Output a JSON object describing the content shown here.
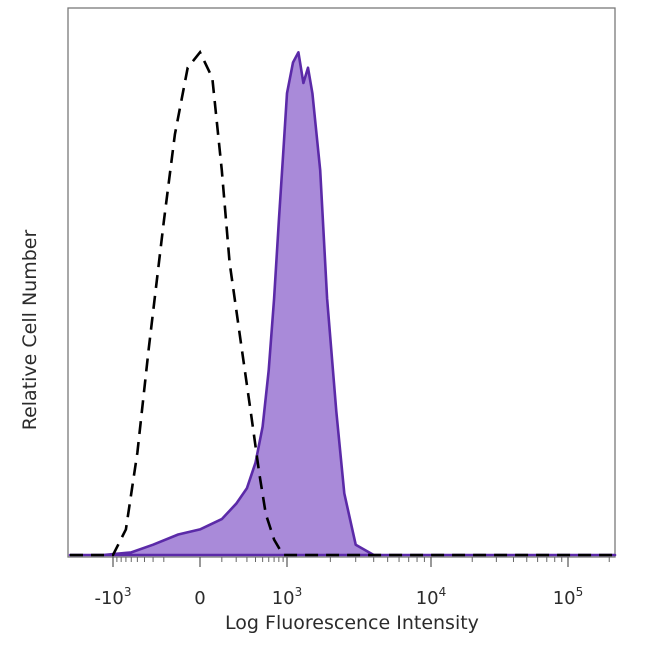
{
  "chart_data": {
    "type": "area",
    "xlabel": "Log Fluorescence Intensity",
    "ylabel": "Relative Cell Number",
    "x_scale": "biexponential",
    "xlim": [
      -1500,
      300000
    ],
    "ylim": [
      0,
      1
    ],
    "grid": false,
    "x_ticks": [
      {
        "value": -1000,
        "base": "-10",
        "exp": "3"
      },
      {
        "value": 0,
        "base": "0",
        "exp": ""
      },
      {
        "value": 1000,
        "base": "10",
        "exp": "3"
      },
      {
        "value": 10000,
        "base": "10",
        "exp": "4"
      },
      {
        "value": 100000,
        "base": "10",
        "exp": "5"
      }
    ],
    "series": [
      {
        "style": "dashed-outline",
        "color": "#000000",
        "x": [
          -3000,
          -1000,
          -700,
          -500,
          -350,
          -200,
          -120,
          -50,
          0,
          50,
          100,
          150,
          250,
          350,
          450,
          550,
          700,
          900,
          1500,
          300000
        ],
        "y": [
          0,
          0,
          0.05,
          0.2,
          0.4,
          0.65,
          0.82,
          0.95,
          0.98,
          0.93,
          0.75,
          0.57,
          0.4,
          0.27,
          0.16,
          0.08,
          0.03,
          0,
          0,
          0
        ]
      },
      {
        "style": "filled",
        "color": "#5b2aa8",
        "fill": "#a98ad9",
        "x": [
          -3000,
          -1300,
          -600,
          -300,
          -100,
          0,
          100,
          200,
          300,
          400,
          500,
          600,
          700,
          800,
          900,
          1000,
          1100,
          1200,
          1300,
          1400,
          1500,
          1700,
          1900,
          2200,
          2500,
          3000,
          4000,
          300000
        ],
        "y": [
          0,
          0,
          0.005,
          0.02,
          0.04,
          0.05,
          0.07,
          0.1,
          0.13,
          0.18,
          0.25,
          0.36,
          0.5,
          0.65,
          0.78,
          0.9,
          0.96,
          0.98,
          0.92,
          0.95,
          0.9,
          0.75,
          0.5,
          0.28,
          0.12,
          0.02,
          0,
          0
        ]
      }
    ]
  }
}
